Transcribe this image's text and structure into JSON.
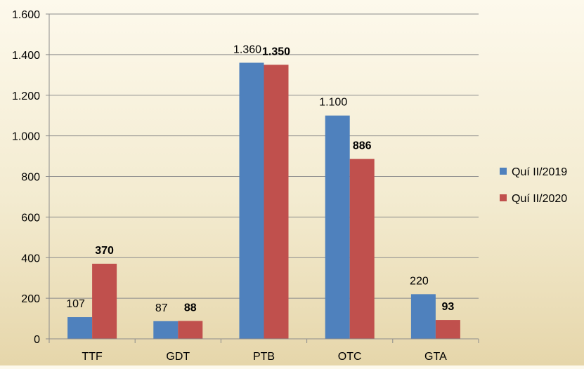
{
  "chart_data": {
    "type": "bar",
    "categories": [
      "TTF",
      "GDT",
      "PTB",
      "OTC",
      "GTA"
    ],
    "series": [
      {
        "name": "Quí II/2019",
        "color": "#4f81bd",
        "values": [
          107,
          87,
          1360,
          1100,
          220
        ],
        "labels": [
          "107",
          "87",
          "1.360",
          "1.100",
          "220"
        ],
        "label_bold": false
      },
      {
        "name": "Quí II/2020",
        "color": "#c0504d",
        "values": [
          370,
          88,
          1350,
          886,
          93
        ],
        "labels": [
          "370",
          "88",
          "1.350",
          "886",
          "93"
        ],
        "label_bold": true
      }
    ],
    "yticks": [
      {
        "value": 0,
        "label": "0"
      },
      {
        "value": 200,
        "label": "200"
      },
      {
        "value": 400,
        "label": "400"
      },
      {
        "value": 600,
        "label": "600"
      },
      {
        "value": 800,
        "label": "800"
      },
      {
        "value": 1000,
        "label": "1.000"
      },
      {
        "value": 1200,
        "label": "1.200"
      },
      {
        "value": 1400,
        "label": "1.400"
      },
      {
        "value": 1600,
        "label": "1.600"
      }
    ],
    "ylim": [
      0,
      1600
    ],
    "grid": true,
    "legend_position": "right",
    "title": "",
    "xlabel": "",
    "ylabel": ""
  }
}
